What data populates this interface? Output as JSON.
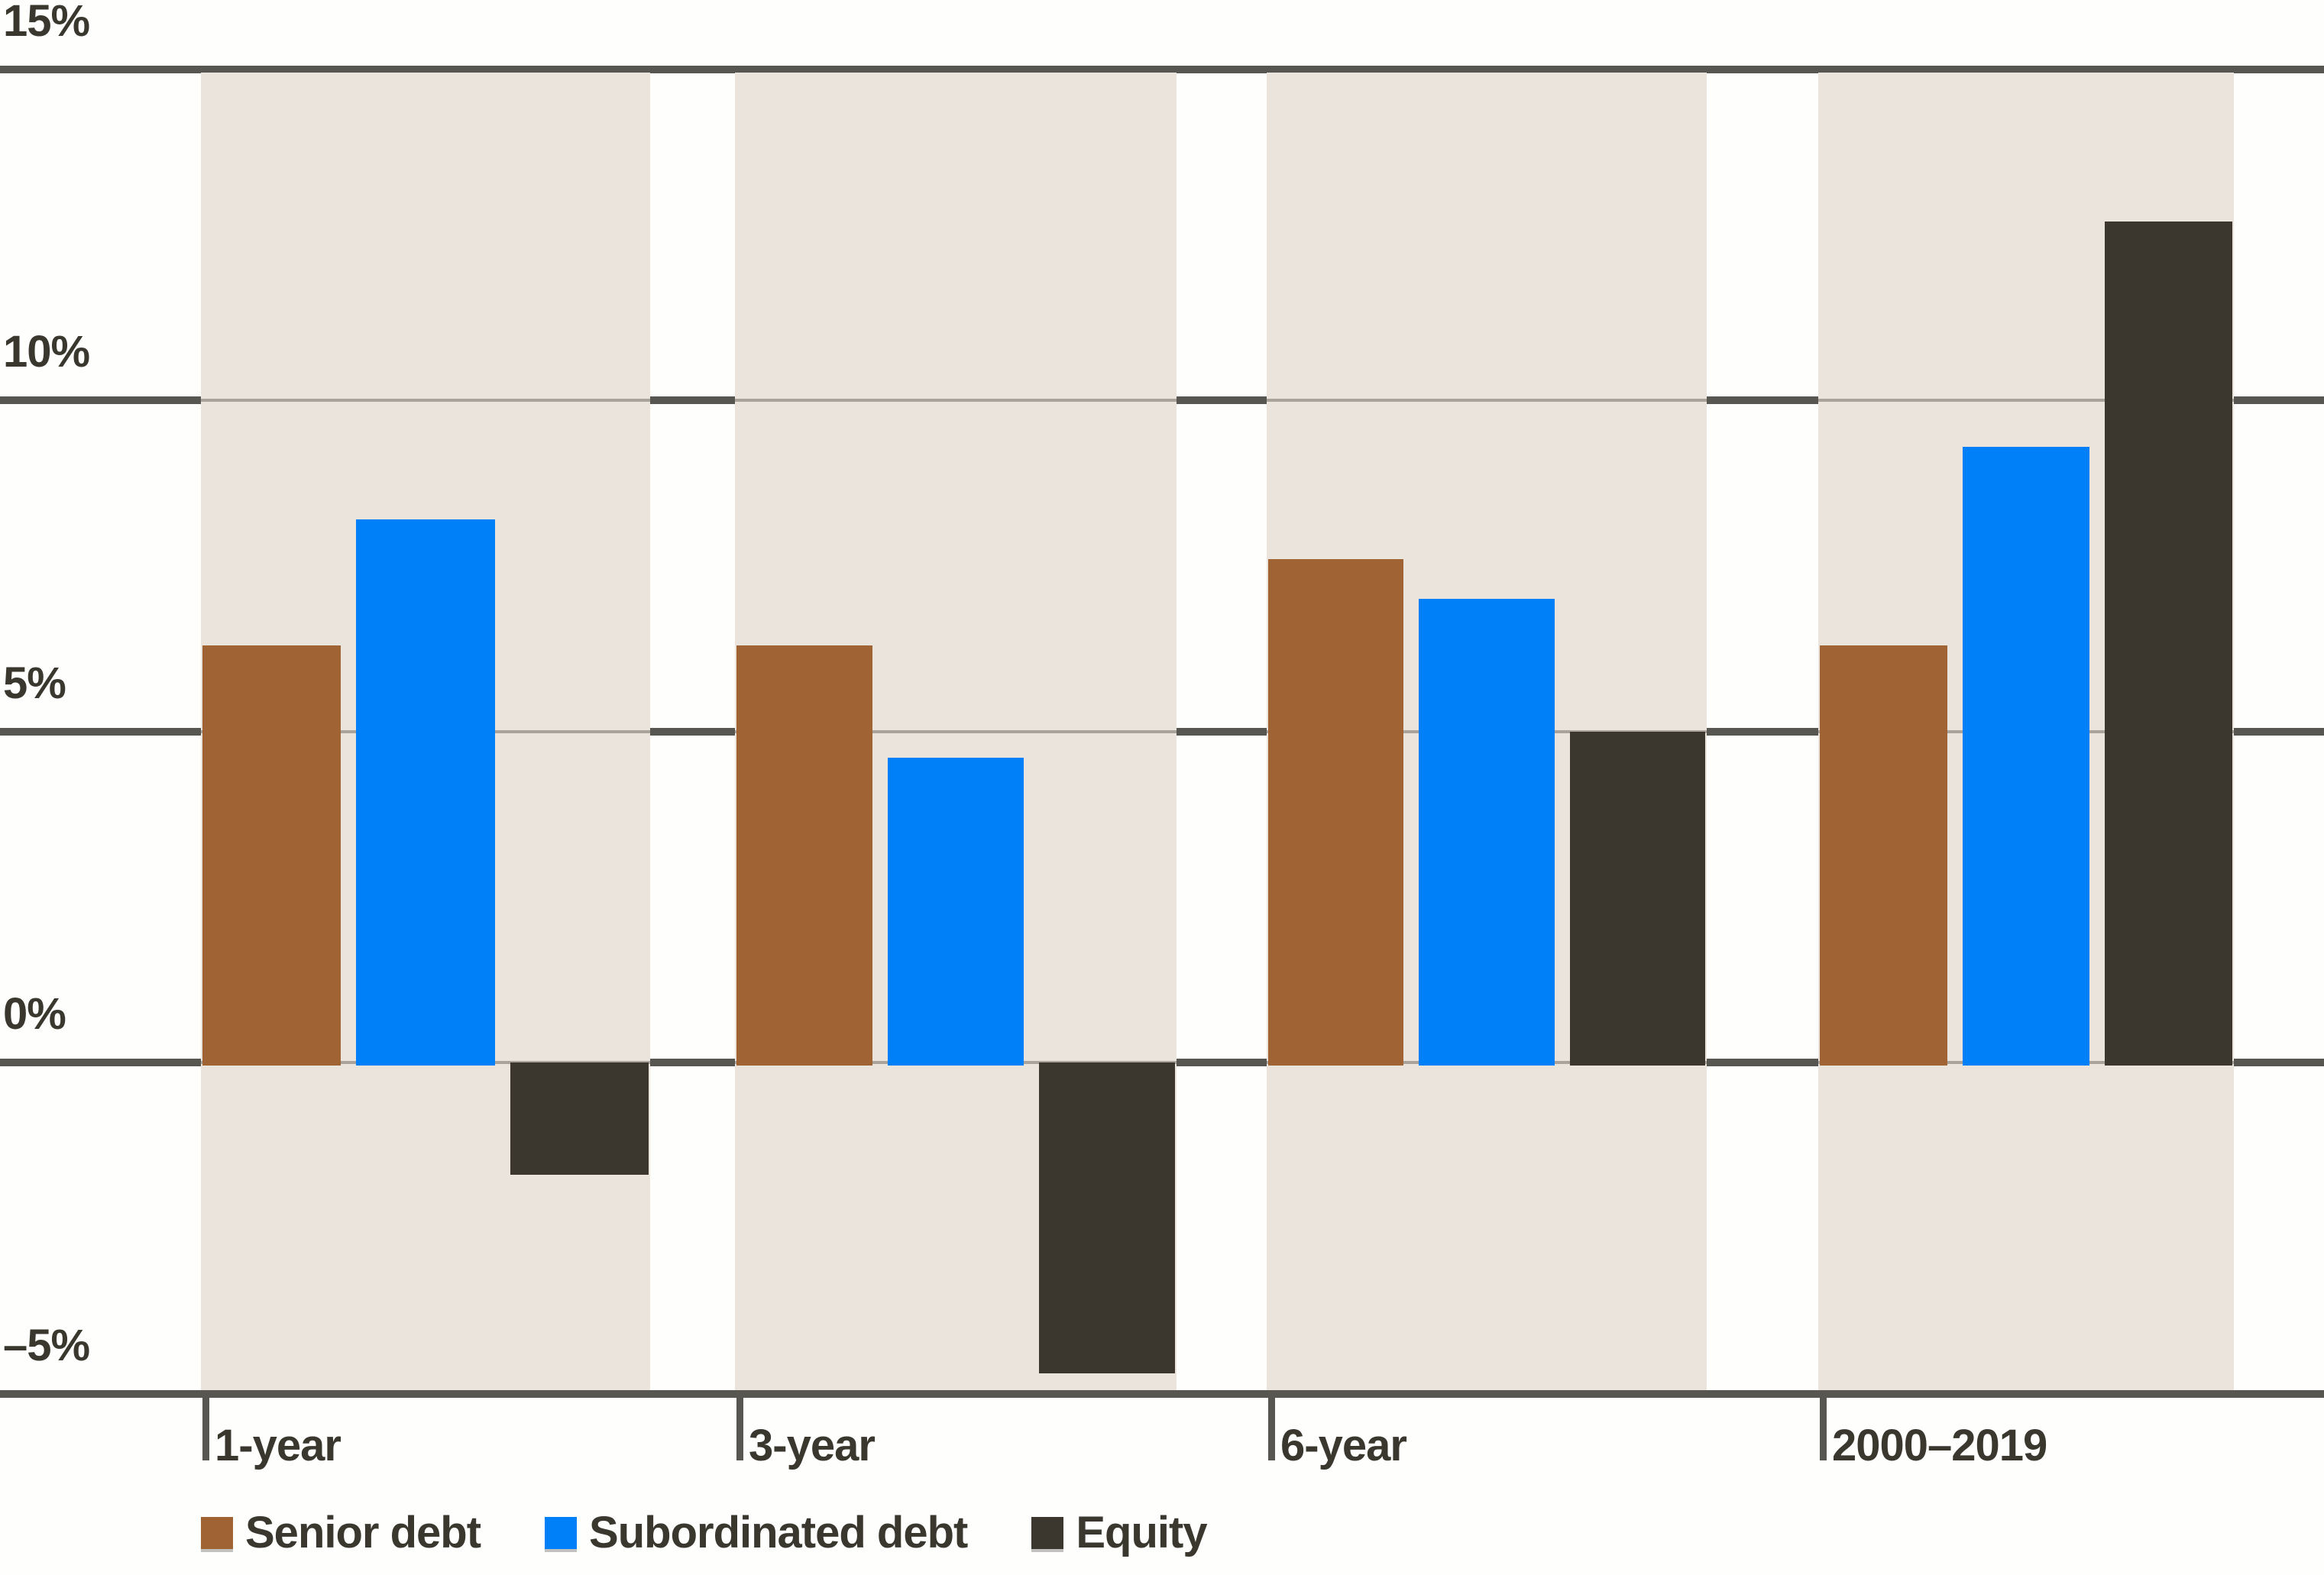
{
  "chart_data": {
    "type": "bar",
    "title": "",
    "xlabel": "",
    "ylabel": "",
    "unit": "%",
    "categories": [
      "1-year",
      "3-year",
      "6-year",
      "2000–2019"
    ],
    "series": [
      {
        "name": "Senior debt",
        "color": "#a06434",
        "values": [
          6.3,
          6.3,
          7.6,
          6.3
        ]
      },
      {
        "name": "Subordinated debt",
        "color": "#0080f8",
        "values": [
          8.2,
          4.6,
          7.0,
          9.3
        ]
      },
      {
        "name": "Equity",
        "color": "#3b372f",
        "values": [
          -1.7,
          -4.7,
          5.0,
          12.7
        ]
      }
    ],
    "y_ticks": [
      {
        "value": 15,
        "label": "15%"
      },
      {
        "value": 10,
        "label": "10%"
      },
      {
        "value": 5,
        "label": "5%"
      },
      {
        "value": 0,
        "label": "0%"
      },
      {
        "value": -5,
        "label": "–5%"
      }
    ],
    "ylim": [
      -5.8,
      15.6
    ],
    "grid": true,
    "legend_position": "bottom-left",
    "band_color": "#ebe4dd",
    "grid_color_dark": "#575651",
    "grid_color_inner": "#a9a39c",
    "text_color": "#3a372f"
  }
}
